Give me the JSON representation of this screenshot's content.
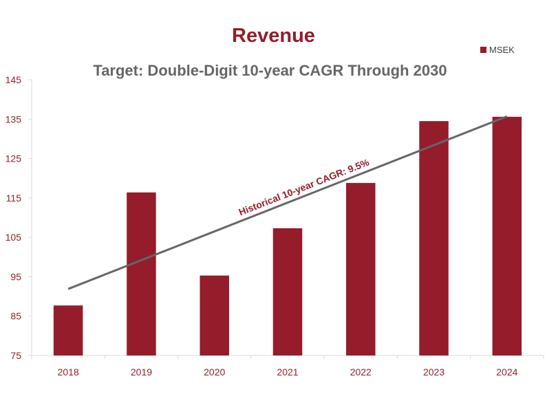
{
  "chart_data": {
    "type": "bar",
    "title": "Revenue",
    "subtitle": "Target: Double-Digit 10-year CAGR Through 2030",
    "categories": [
      "2018",
      "2019",
      "2020",
      "2021",
      "2022",
      "2023",
      "2024"
    ],
    "series": [
      {
        "name": "MSEK",
        "values": [
          87.7,
          116.4,
          95.3,
          107.3,
          118.8,
          134.5,
          135.6
        ]
      }
    ],
    "yticks": [
      "75",
      "85",
      "95",
      "105",
      "115",
      "125",
      "135",
      "145"
    ],
    "ylim": [
      75,
      145
    ],
    "trendline": {
      "from": {
        "x": "2018",
        "y": 91.9
      },
      "to": {
        "x": "2024",
        "y": 135.7
      }
    },
    "annotation": "Historical 10-year CAGR: 9.5%",
    "legend_position": "top-right",
    "grid": false,
    "colors": {
      "bar": "#951c2b",
      "title": "#951c2b",
      "subtitle": "#666666",
      "trend": "#666666",
      "axis": "#d9d9d9",
      "tick_label": "#951c2b"
    }
  }
}
